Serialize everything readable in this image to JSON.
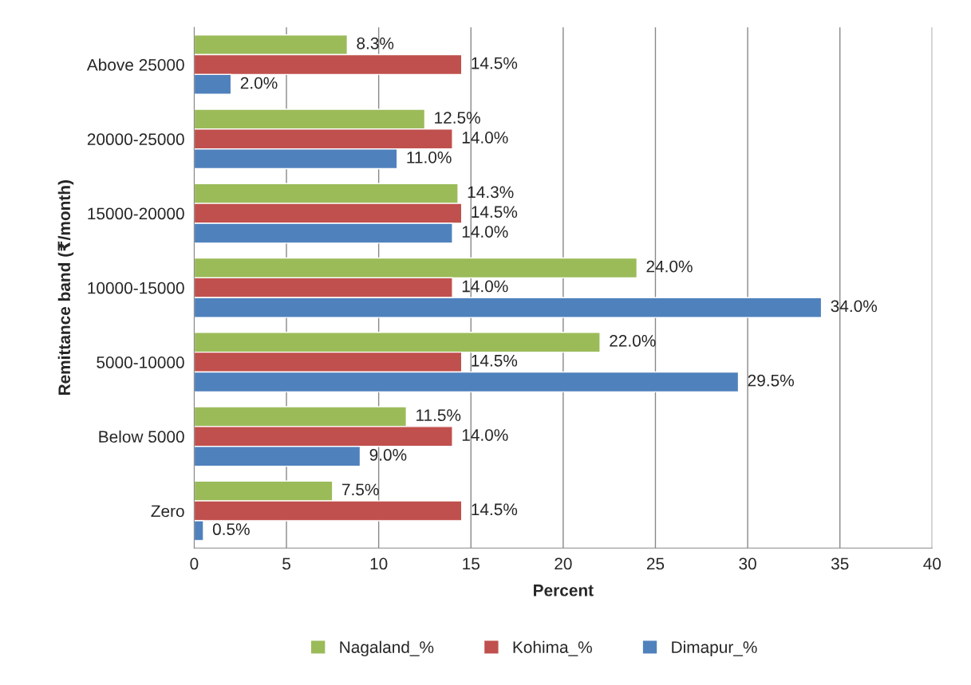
{
  "chart_data": {
    "type": "bar",
    "orientation": "horizontal",
    "xlabel": "Percent",
    "ylabel": "Remittance band (₹/month)",
    "categories": [
      "Above 25000",
      "20000-25000",
      "15000-20000",
      "10000-15000",
      "5000-10000",
      "Below 5000",
      "Zero"
    ],
    "series": [
      {
        "name": "Nagaland_%",
        "color": "#9bbb59",
        "values": [
          8.3,
          12.5,
          14.3,
          24.0,
          22.0,
          11.5,
          7.5
        ],
        "value_labels": [
          "8.3%",
          "12.5%",
          "14.3%",
          "24.0%",
          "22.0%",
          "11.5%",
          "7.5%"
        ]
      },
      {
        "name": "Kohima_%",
        "color": "#c0504d",
        "values": [
          14.5,
          14.0,
          14.5,
          14.0,
          14.5,
          14.0,
          14.5
        ],
        "value_labels": [
          "14.5%",
          "14.0%",
          "14.5%",
          "14.0%",
          "14.5%",
          "14.0%",
          "14.5%"
        ]
      },
      {
        "name": "Dimapur_%",
        "color": "#4f81bd",
        "values": [
          2.0,
          11.0,
          14.0,
          34.0,
          29.5,
          9.0,
          0.5
        ],
        "value_labels": [
          "2.0%",
          "11.0%",
          "14.0%",
          "34.0%",
          "29.5%",
          "9.0%",
          "0.5%"
        ]
      }
    ],
    "xlim": [
      0,
      40
    ],
    "xticks": [
      0,
      5,
      10,
      15,
      20,
      25,
      30,
      35,
      40
    ],
    "grid": "x",
    "legend": "bottom"
  }
}
